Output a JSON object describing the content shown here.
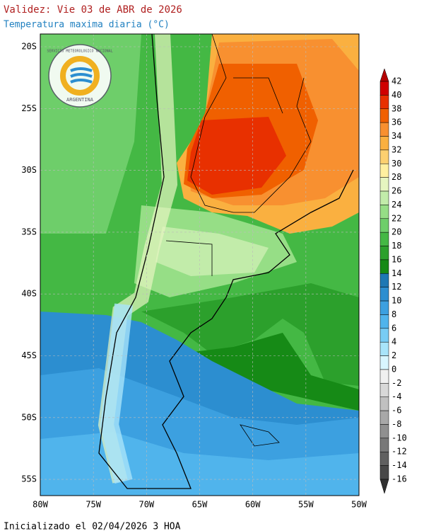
{
  "header": {
    "title": "Validez: Vie 03 de ABR de 2026",
    "subtitle": "Temperatura maxima diaria (°C)"
  },
  "logo": {
    "ring_text": "SERVICIO METEOROLOGICO NACIONAL",
    "country": "ARGENTINA"
  },
  "map": {
    "lat_labels": [
      "20S",
      "25S",
      "30S",
      "35S",
      "40S",
      "45S",
      "50S",
      "55S"
    ],
    "lon_labels": [
      "80W",
      "75W",
      "70W",
      "65W",
      "60W",
      "55W",
      "50W"
    ]
  },
  "colorbar": {
    "levels": [
      42,
      40,
      38,
      36,
      34,
      32,
      30,
      28,
      26,
      24,
      22,
      20,
      18,
      16,
      14,
      12,
      10,
      8,
      6,
      4,
      2,
      0,
      -2,
      -4,
      -6,
      -8,
      -10,
      -12,
      -14,
      -16
    ],
    "colors": [
      "#b40000",
      "#d00000",
      "#e83000",
      "#f06000",
      "#f89030",
      "#fab040",
      "#fcd070",
      "#fff0a0",
      "#e6f5c0",
      "#c2ecaa",
      "#96de86",
      "#6ece6a",
      "#44b844",
      "#2ca02c",
      "#168a16",
      "#1e78b4",
      "#2c8ed0",
      "#3ca0e0",
      "#50b4ec",
      "#78ccf4",
      "#a8e4fa",
      "#d8f6ff",
      "#f0f0f0",
      "#d8d8d8",
      "#c0c0c0",
      "#a8a8a8",
      "#909090",
      "#787878",
      "#606060",
      "#484848",
      "#303030"
    ]
  },
  "footer": "Inicializado el 02/04/2026 3 HOA"
}
